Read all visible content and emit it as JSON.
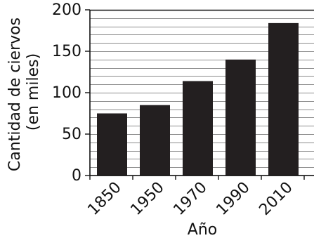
{
  "chart_data": {
    "type": "bar",
    "categories": [
      "1850",
      "1950",
      "1970",
      "1990",
      "2010"
    ],
    "values": [
      75,
      85,
      114,
      140,
      184
    ],
    "xlabel": "Año",
    "ylabel_lines": [
      "Cantidad de ciervos",
      "(en miles)"
    ],
    "ylim": [
      0,
      200
    ],
    "yticks": [
      "0",
      "50",
      "100",
      "150",
      "200"
    ],
    "grid": true,
    "colors": {
      "bar": "#231f20",
      "grid": "#8c8c8c",
      "axis": "#111111"
    }
  }
}
